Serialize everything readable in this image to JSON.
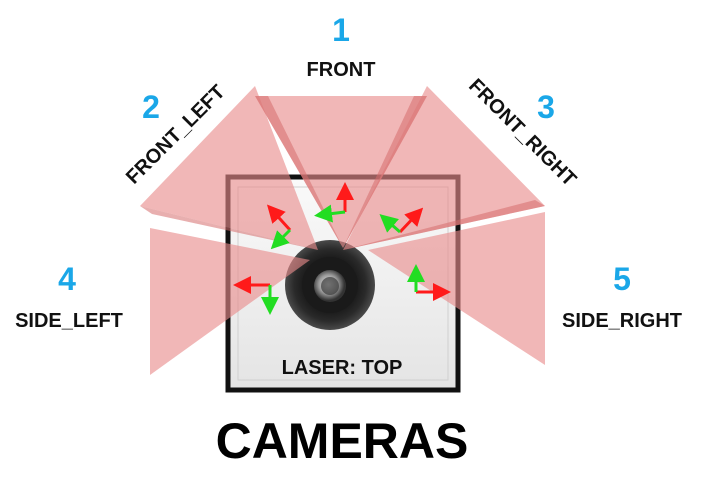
{
  "title": "CAMERAS",
  "laser_label": "LASER: TOP",
  "cameras": [
    {
      "number": "1",
      "label": "FRONT"
    },
    {
      "number": "2",
      "label": "FRONT_LEFT"
    },
    {
      "number": "3",
      "label": "FRONT_RIGHT"
    },
    {
      "number": "4",
      "label": "SIDE_LEFT"
    },
    {
      "number": "5",
      "label": "SIDE_RIGHT"
    }
  ],
  "colors": {
    "fov_fill": "#e88a8a",
    "number": "#1aa7e8",
    "axis_x": "#ff1a1a",
    "axis_y": "#22dd22",
    "vehicle_border": "#111111"
  },
  "icons": [
    "laser-sensor-icon",
    "coordinate-axes-icon"
  ]
}
